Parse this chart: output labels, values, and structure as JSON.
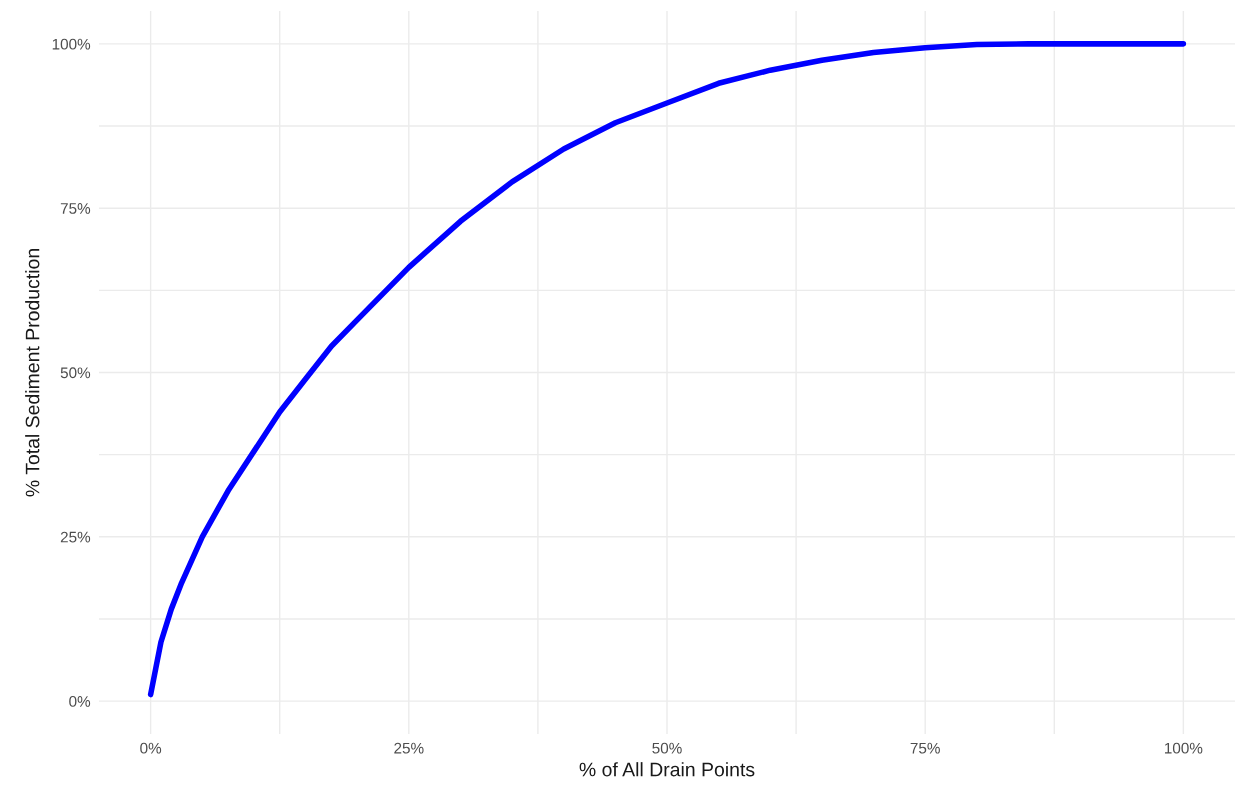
{
  "chart_data": {
    "type": "line",
    "xlabel": "% of All Drain Points",
    "ylabel": "% Total Sediment Production",
    "x": [
      0,
      0.5,
      1,
      2,
      3,
      5,
      7.5,
      10,
      12.5,
      15,
      17.5,
      20,
      25,
      30,
      35,
      40,
      45,
      50,
      55,
      60,
      65,
      70,
      75,
      80,
      85,
      90,
      95,
      100
    ],
    "series": [
      {
        "color": "#0000ff",
        "values": [
          1,
          5,
          9,
          14,
          18,
          25,
          32,
          38,
          44,
          49,
          54,
          58,
          66,
          73,
          79,
          84,
          88,
          91,
          94,
          96,
          97.5,
          98.7,
          99.4,
          99.9,
          100,
          100,
          100,
          100
        ]
      }
    ],
    "xlim": [
      -5,
      105
    ],
    "ylim": [
      -5,
      105
    ],
    "xticks": [
      {
        "value": 0,
        "label": "0%"
      },
      {
        "value": 12.5,
        "label": null
      },
      {
        "value": 25,
        "label": "25%"
      },
      {
        "value": 37.5,
        "label": null
      },
      {
        "value": 50,
        "label": "50%"
      },
      {
        "value": 62.5,
        "label": null
      },
      {
        "value": 75,
        "label": "75%"
      },
      {
        "value": 87.5,
        "label": null
      },
      {
        "value": 100,
        "label": "100%"
      }
    ],
    "yticks": [
      {
        "value": 0,
        "label": "0%"
      },
      {
        "value": 12.5,
        "label": null
      },
      {
        "value": 25,
        "label": "25%"
      },
      {
        "value": 37.5,
        "label": null
      },
      {
        "value": 50,
        "label": "50%"
      },
      {
        "value": 62.5,
        "label": null
      },
      {
        "value": 75,
        "label": "75%"
      },
      {
        "value": 87.5,
        "label": null
      },
      {
        "value": 100,
        "label": "100%"
      }
    ],
    "grid": true,
    "marker": "none",
    "line_style": "solid"
  }
}
